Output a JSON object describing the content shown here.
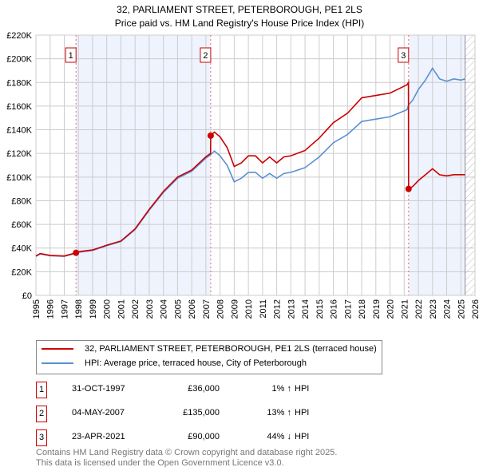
{
  "chart_data": {
    "type": "line",
    "title": "32, PARLIAMENT STREET, PETERBOROUGH, PE1 2LS",
    "subtitle": "Price paid vs. HM Land Registry's House Price Index (HPI)",
    "xlim": [
      1995,
      2026
    ],
    "ylim": [
      0,
      220000
    ],
    "xticks": [
      "1995",
      "1996",
      "1997",
      "1998",
      "1999",
      "2000",
      "2001",
      "2002",
      "2003",
      "2004",
      "2005",
      "2006",
      "2007",
      "2008",
      "2009",
      "2010",
      "2011",
      "2012",
      "2013",
      "2014",
      "2015",
      "2016",
      "2017",
      "2018",
      "2019",
      "2020",
      "2021",
      "2022",
      "2023",
      "2024",
      "2025",
      "2026"
    ],
    "yticks": [
      {
        "v": 0,
        "label": "£0"
      },
      {
        "v": 20000,
        "label": "£20K"
      },
      {
        "v": 40000,
        "label": "£40K"
      },
      {
        "v": 60000,
        "label": "£60K"
      },
      {
        "v": 80000,
        "label": "£80K"
      },
      {
        "v": 100000,
        "label": "£100K"
      },
      {
        "v": 120000,
        "label": "£120K"
      },
      {
        "v": 140000,
        "label": "£140K"
      },
      {
        "v": 160000,
        "label": "£160K"
      },
      {
        "v": 180000,
        "label": "£180K"
      },
      {
        "v": 200000,
        "label": "£200K"
      },
      {
        "v": 220000,
        "label": "£220K"
      }
    ],
    "grid": true,
    "shaded_ranges": [
      [
        1997.83,
        2007.34
      ],
      [
        2021.31,
        2025.3
      ]
    ],
    "forecast_from": 2025.3,
    "series": [
      {
        "name": "32, PARLIAMENT STREET, PETERBOROUGH, PE1 2LS (terraced house)",
        "color": "#cc0000",
        "points": [
          [
            1995,
            33300
          ],
          [
            1995.3,
            35400
          ],
          [
            1996,
            33800
          ],
          [
            1997,
            33300
          ],
          [
            1997.83,
            36000
          ],
          [
            1998,
            36900
          ],
          [
            1999,
            38400
          ],
          [
            2000,
            42400
          ],
          [
            2001,
            46000
          ],
          [
            2002,
            56200
          ],
          [
            2003,
            72700
          ],
          [
            2004,
            87900
          ],
          [
            2005,
            100000
          ],
          [
            2006,
            106000
          ],
          [
            2007,
            117200
          ],
          [
            2007.33,
            120000
          ],
          [
            2007.34,
            135000
          ],
          [
            2007.6,
            138000
          ],
          [
            2008,
            134000
          ],
          [
            2008.5,
            125000
          ],
          [
            2009,
            109000
          ],
          [
            2009.5,
            112000
          ],
          [
            2010,
            118000
          ],
          [
            2010.5,
            118000
          ],
          [
            2011,
            112000
          ],
          [
            2011.5,
            117000
          ],
          [
            2012,
            112000
          ],
          [
            2012.5,
            117000
          ],
          [
            2013,
            118000
          ],
          [
            2014,
            122500
          ],
          [
            2015,
            133000
          ],
          [
            2016,
            146000
          ],
          [
            2017,
            154000
          ],
          [
            2018,
            167000
          ],
          [
            2019,
            169000
          ],
          [
            2020,
            171000
          ],
          [
            2021.2,
            178000
          ],
          [
            2021.3,
            180000
          ],
          [
            2021.31,
            90000
          ],
          [
            2021.6,
            92000
          ],
          [
            2022,
            97000
          ],
          [
            2022.5,
            102000
          ],
          [
            2023,
            107000
          ],
          [
            2023.5,
            102000
          ],
          [
            2024,
            101000
          ],
          [
            2024.5,
            102000
          ],
          [
            2025,
            102000
          ],
          [
            2025.3,
            102000
          ]
        ]
      },
      {
        "name": "HPI: Average price, terraced house, City of Peterborough",
        "color": "#5b8fd4",
        "points": [
          [
            1995,
            33000
          ],
          [
            1995.3,
            35000
          ],
          [
            1996,
            33500
          ],
          [
            1997,
            33000
          ],
          [
            1997.83,
            35600
          ],
          [
            1998,
            36500
          ],
          [
            1999,
            38000
          ],
          [
            2000,
            42000
          ],
          [
            2001,
            45500
          ],
          [
            2002,
            55600
          ],
          [
            2003,
            72000
          ],
          [
            2004,
            87000
          ],
          [
            2005,
            99000
          ],
          [
            2006,
            105000
          ],
          [
            2007,
            116000
          ],
          [
            2007.34,
            119000
          ],
          [
            2007.6,
            122000
          ],
          [
            2008,
            118000
          ],
          [
            2008.5,
            110000
          ],
          [
            2009,
            96000
          ],
          [
            2009.5,
            99000
          ],
          [
            2010,
            104000
          ],
          [
            2010.5,
            104000
          ],
          [
            2011,
            99000
          ],
          [
            2011.5,
            103000
          ],
          [
            2012,
            99000
          ],
          [
            2012.5,
            103000
          ],
          [
            2013,
            104000
          ],
          [
            2014,
            108000
          ],
          [
            2015,
            117000
          ],
          [
            2016,
            129000
          ],
          [
            2017,
            136000
          ],
          [
            2018,
            147000
          ],
          [
            2019,
            149000
          ],
          [
            2020,
            151000
          ],
          [
            2021.2,
            157000
          ],
          [
            2021.31,
            161000
          ],
          [
            2021.6,
            165000
          ],
          [
            2022,
            174000
          ],
          [
            2022.5,
            182000
          ],
          [
            2023,
            192000
          ],
          [
            2023.5,
            183000
          ],
          [
            2024,
            181000
          ],
          [
            2024.5,
            183000
          ],
          [
            2025,
            182000
          ],
          [
            2025.3,
            183000
          ]
        ]
      }
    ],
    "sales": [
      {
        "label": "1",
        "x": 1997.83,
        "price": 36000,
        "date": "31-OCT-1997",
        "price_text": "£36,000",
        "pct": "1%",
        "dir": "↑",
        "hpi": "HPI"
      },
      {
        "label": "2",
        "x": 2007.34,
        "price": 135000,
        "date": "04-MAY-2007",
        "price_text": "£135,000",
        "pct": "13%",
        "dir": "↑",
        "hpi": "HPI"
      },
      {
        "label": "3",
        "x": 2021.31,
        "price": 90000,
        "date": "23-APR-2021",
        "price_text": "£90,000",
        "pct": "44%",
        "dir": "↓",
        "hpi": "HPI"
      }
    ]
  },
  "footer": {
    "line1": "Contains HM Land Registry data © Crown copyright and database right 2025.",
    "line2": "This data is licensed under the Open Government Licence v3.0."
  }
}
